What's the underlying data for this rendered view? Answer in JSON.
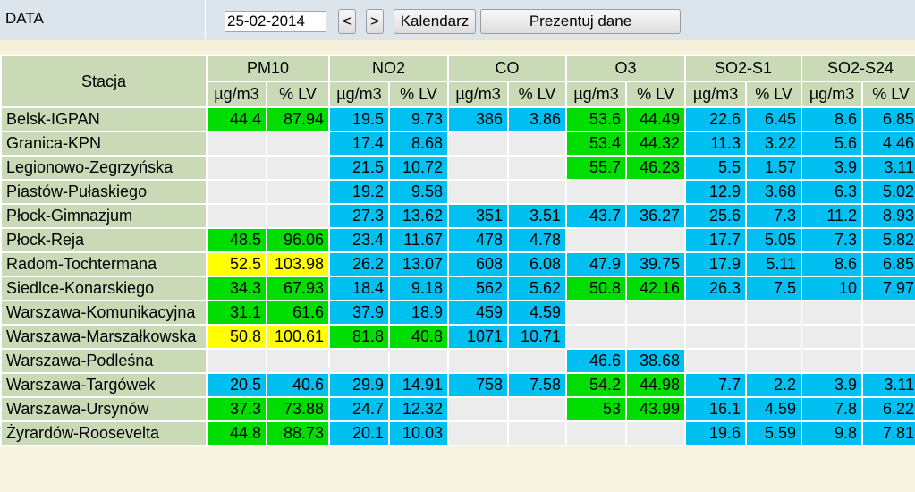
{
  "header": {
    "date_label": "DATA",
    "date_value": "25-02-2014",
    "prev_label": "<",
    "next_label": ">",
    "calendar_label": "Kalendarz",
    "present_label": "Prezentuj dane"
  },
  "colors": {
    "green": "#00dd00",
    "blue": "#00c0f2",
    "yellow": "#ffff00",
    "gray": "#ececec",
    "header_bg": "#cad9b6"
  },
  "table": {
    "station_header": "Stacja",
    "pollutants": [
      "PM10",
      "NO2",
      "CO",
      "O3",
      "SO2-S1",
      "SO2-S24"
    ],
    "units": [
      "µg/m3",
      "% LV",
      "µg/m3",
      "% LV",
      "µg/m3",
      "% LV",
      "µg/m3",
      "% LV",
      "µg/m3",
      "% LV",
      "µg/m3",
      "% LV"
    ],
    "rows": [
      {
        "station": "Belsk-IGPAN",
        "cells": [
          {
            "v": "44.4",
            "c": "green"
          },
          {
            "v": "87.94",
            "c": "green"
          },
          {
            "v": "19.5",
            "c": "blue"
          },
          {
            "v": "9.73",
            "c": "blue"
          },
          {
            "v": "386",
            "c": "blue"
          },
          {
            "v": "3.86",
            "c": "blue"
          },
          {
            "v": "53.6",
            "c": "green"
          },
          {
            "v": "44.49",
            "c": "green"
          },
          {
            "v": "22.6",
            "c": "blue"
          },
          {
            "v": "6.45",
            "c": "blue"
          },
          {
            "v": "8.6",
            "c": "blue"
          },
          {
            "v": "6.85",
            "c": "blue"
          }
        ]
      },
      {
        "station": "Granica-KPN",
        "cells": [
          {
            "v": "",
            "c": "gray"
          },
          {
            "v": "",
            "c": "gray"
          },
          {
            "v": "17.4",
            "c": "blue"
          },
          {
            "v": "8.68",
            "c": "blue"
          },
          {
            "v": "",
            "c": "gray"
          },
          {
            "v": "",
            "c": "gray"
          },
          {
            "v": "53.4",
            "c": "green"
          },
          {
            "v": "44.32",
            "c": "green"
          },
          {
            "v": "11.3",
            "c": "blue"
          },
          {
            "v": "3.22",
            "c": "blue"
          },
          {
            "v": "5.6",
            "c": "blue"
          },
          {
            "v": "4.46",
            "c": "blue"
          }
        ]
      },
      {
        "station": "Legionowo-Zegrzyńska",
        "cells": [
          {
            "v": "",
            "c": "gray"
          },
          {
            "v": "",
            "c": "gray"
          },
          {
            "v": "21.5",
            "c": "blue"
          },
          {
            "v": "10.72",
            "c": "blue"
          },
          {
            "v": "",
            "c": "gray"
          },
          {
            "v": "",
            "c": "gray"
          },
          {
            "v": "55.7",
            "c": "green"
          },
          {
            "v": "46.23",
            "c": "green"
          },
          {
            "v": "5.5",
            "c": "blue"
          },
          {
            "v": "1.57",
            "c": "blue"
          },
          {
            "v": "3.9",
            "c": "blue"
          },
          {
            "v": "3.11",
            "c": "blue"
          }
        ]
      },
      {
        "station": "Piastów-Pułaskiego",
        "cells": [
          {
            "v": "",
            "c": "gray"
          },
          {
            "v": "",
            "c": "gray"
          },
          {
            "v": "19.2",
            "c": "blue"
          },
          {
            "v": "9.58",
            "c": "blue"
          },
          {
            "v": "",
            "c": "gray"
          },
          {
            "v": "",
            "c": "gray"
          },
          {
            "v": "",
            "c": "gray"
          },
          {
            "v": "",
            "c": "gray"
          },
          {
            "v": "12.9",
            "c": "blue"
          },
          {
            "v": "3.68",
            "c": "blue"
          },
          {
            "v": "6.3",
            "c": "blue"
          },
          {
            "v": "5.02",
            "c": "blue"
          }
        ]
      },
      {
        "station": "Płock-Gimnazjum",
        "cells": [
          {
            "v": "",
            "c": "gray"
          },
          {
            "v": "",
            "c": "gray"
          },
          {
            "v": "27.3",
            "c": "blue"
          },
          {
            "v": "13.62",
            "c": "blue"
          },
          {
            "v": "351",
            "c": "blue"
          },
          {
            "v": "3.51",
            "c": "blue"
          },
          {
            "v": "43.7",
            "c": "blue"
          },
          {
            "v": "36.27",
            "c": "blue"
          },
          {
            "v": "25.6",
            "c": "blue"
          },
          {
            "v": "7.3",
            "c": "blue"
          },
          {
            "v": "11.2",
            "c": "blue"
          },
          {
            "v": "8.93",
            "c": "blue"
          }
        ]
      },
      {
        "station": "Płock-Reja",
        "cells": [
          {
            "v": "48.5",
            "c": "green"
          },
          {
            "v": "96.06",
            "c": "green"
          },
          {
            "v": "23.4",
            "c": "blue"
          },
          {
            "v": "11.67",
            "c": "blue"
          },
          {
            "v": "478",
            "c": "blue"
          },
          {
            "v": "4.78",
            "c": "blue"
          },
          {
            "v": "",
            "c": "gray"
          },
          {
            "v": "",
            "c": "gray"
          },
          {
            "v": "17.7",
            "c": "blue"
          },
          {
            "v": "5.05",
            "c": "blue"
          },
          {
            "v": "7.3",
            "c": "blue"
          },
          {
            "v": "5.82",
            "c": "blue"
          }
        ]
      },
      {
        "station": "Radom-Tochtermana",
        "cells": [
          {
            "v": "52.5",
            "c": "yellow"
          },
          {
            "v": "103.98",
            "c": "yellow"
          },
          {
            "v": "26.2",
            "c": "blue"
          },
          {
            "v": "13.07",
            "c": "blue"
          },
          {
            "v": "608",
            "c": "blue"
          },
          {
            "v": "6.08",
            "c": "blue"
          },
          {
            "v": "47.9",
            "c": "blue"
          },
          {
            "v": "39.75",
            "c": "blue"
          },
          {
            "v": "17.9",
            "c": "blue"
          },
          {
            "v": "5.11",
            "c": "blue"
          },
          {
            "v": "8.6",
            "c": "blue"
          },
          {
            "v": "6.85",
            "c": "blue"
          }
        ]
      },
      {
        "station": "Siedlce-Konarskiego",
        "cells": [
          {
            "v": "34.3",
            "c": "green"
          },
          {
            "v": "67.93",
            "c": "green"
          },
          {
            "v": "18.4",
            "c": "blue"
          },
          {
            "v": "9.18",
            "c": "blue"
          },
          {
            "v": "562",
            "c": "blue"
          },
          {
            "v": "5.62",
            "c": "blue"
          },
          {
            "v": "50.8",
            "c": "green"
          },
          {
            "v": "42.16",
            "c": "green"
          },
          {
            "v": "26.3",
            "c": "blue"
          },
          {
            "v": "7.5",
            "c": "blue"
          },
          {
            "v": "10",
            "c": "blue"
          },
          {
            "v": "7.97",
            "c": "blue"
          }
        ]
      },
      {
        "station": "Warszawa-Komunikacyjna",
        "cells": [
          {
            "v": "31.1",
            "c": "green"
          },
          {
            "v": "61.6",
            "c": "green"
          },
          {
            "v": "37.9",
            "c": "blue"
          },
          {
            "v": "18.9",
            "c": "blue"
          },
          {
            "v": "459",
            "c": "blue"
          },
          {
            "v": "4.59",
            "c": "blue"
          },
          {
            "v": "",
            "c": "gray"
          },
          {
            "v": "",
            "c": "gray"
          },
          {
            "v": "",
            "c": "gray"
          },
          {
            "v": "",
            "c": "gray"
          },
          {
            "v": "",
            "c": "gray"
          },
          {
            "v": "",
            "c": "gray"
          }
        ]
      },
      {
        "station": "Warszawa-Marszałkowska",
        "cells": [
          {
            "v": "50.8",
            "c": "yellow"
          },
          {
            "v": "100.61",
            "c": "yellow"
          },
          {
            "v": "81.8",
            "c": "green"
          },
          {
            "v": "40.8",
            "c": "green"
          },
          {
            "v": "1071",
            "c": "blue"
          },
          {
            "v": "10.71",
            "c": "blue"
          },
          {
            "v": "",
            "c": "gray"
          },
          {
            "v": "",
            "c": "gray"
          },
          {
            "v": "",
            "c": "gray"
          },
          {
            "v": "",
            "c": "gray"
          },
          {
            "v": "",
            "c": "gray"
          },
          {
            "v": "",
            "c": "gray"
          }
        ]
      },
      {
        "station": "Warszawa-Podleśna",
        "cells": [
          {
            "v": "",
            "c": "gray"
          },
          {
            "v": "",
            "c": "gray"
          },
          {
            "v": "",
            "c": "gray"
          },
          {
            "v": "",
            "c": "gray"
          },
          {
            "v": "",
            "c": "gray"
          },
          {
            "v": "",
            "c": "gray"
          },
          {
            "v": "46.6",
            "c": "blue"
          },
          {
            "v": "38.68",
            "c": "blue"
          },
          {
            "v": "",
            "c": "gray"
          },
          {
            "v": "",
            "c": "gray"
          },
          {
            "v": "",
            "c": "gray"
          },
          {
            "v": "",
            "c": "gray"
          }
        ]
      },
      {
        "station": "Warszawa-Targówek",
        "cells": [
          {
            "v": "20.5",
            "c": "blue"
          },
          {
            "v": "40.6",
            "c": "blue"
          },
          {
            "v": "29.9",
            "c": "blue"
          },
          {
            "v": "14.91",
            "c": "blue"
          },
          {
            "v": "758",
            "c": "blue"
          },
          {
            "v": "7.58",
            "c": "blue"
          },
          {
            "v": "54.2",
            "c": "green"
          },
          {
            "v": "44.98",
            "c": "green"
          },
          {
            "v": "7.7",
            "c": "blue"
          },
          {
            "v": "2.2",
            "c": "blue"
          },
          {
            "v": "3.9",
            "c": "blue"
          },
          {
            "v": "3.11",
            "c": "blue"
          }
        ]
      },
      {
        "station": "Warszawa-Ursynów",
        "cells": [
          {
            "v": "37.3",
            "c": "green"
          },
          {
            "v": "73.88",
            "c": "green"
          },
          {
            "v": "24.7",
            "c": "blue"
          },
          {
            "v": "12.32",
            "c": "blue"
          },
          {
            "v": "",
            "c": "gray"
          },
          {
            "v": "",
            "c": "gray"
          },
          {
            "v": "53",
            "c": "green"
          },
          {
            "v": "43.99",
            "c": "green"
          },
          {
            "v": "16.1",
            "c": "blue"
          },
          {
            "v": "4.59",
            "c": "blue"
          },
          {
            "v": "7.8",
            "c": "blue"
          },
          {
            "v": "6.22",
            "c": "blue"
          }
        ]
      },
      {
        "station": "Żyrardów-Roosevelta",
        "cells": [
          {
            "v": "44.8",
            "c": "green"
          },
          {
            "v": "88.73",
            "c": "green"
          },
          {
            "v": "20.1",
            "c": "blue"
          },
          {
            "v": "10.03",
            "c": "blue"
          },
          {
            "v": "",
            "c": "gray"
          },
          {
            "v": "",
            "c": "gray"
          },
          {
            "v": "",
            "c": "gray"
          },
          {
            "v": "",
            "c": "gray"
          },
          {
            "v": "19.6",
            "c": "blue"
          },
          {
            "v": "5.59",
            "c": "blue"
          },
          {
            "v": "9.8",
            "c": "blue"
          },
          {
            "v": "7.81",
            "c": "blue"
          }
        ]
      }
    ]
  }
}
